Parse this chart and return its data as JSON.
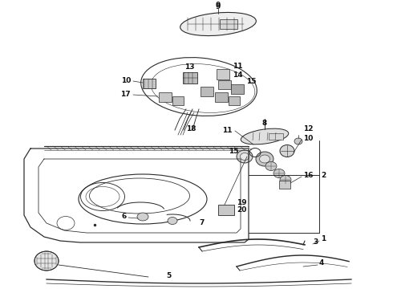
{
  "bg": "#ffffff",
  "lc": "#2a2a2a",
  "lw": 0.8,
  "figw": 4.9,
  "figh": 3.6,
  "dpi": 100
}
